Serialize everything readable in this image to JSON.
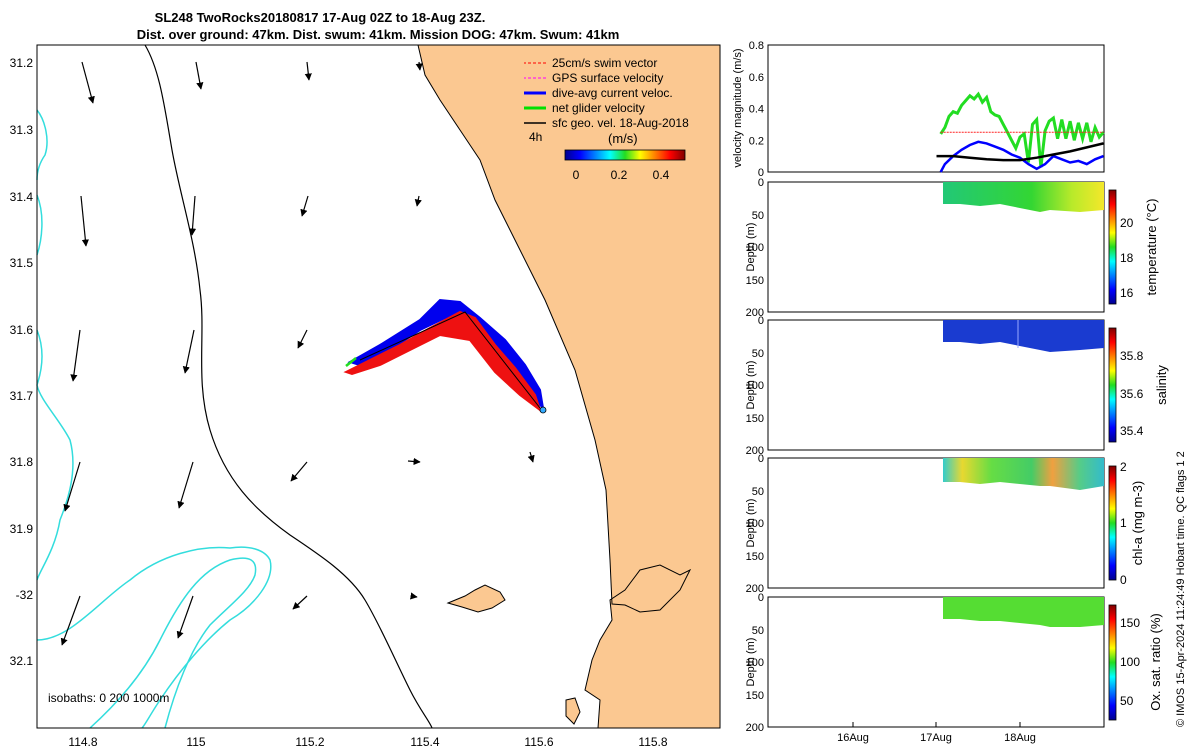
{
  "header": {
    "title_line1": "SL248 TwoRocks20180817 17-Aug 02Z to 18-Aug 23Z.",
    "title_line2": "Dist. over ground: 47km. Dist. swum: 41km. Mission DOG: 47km. Swum: 41km"
  },
  "map": {
    "lon_ticks": [
      "114.8",
      "115",
      "115.2",
      "115.4",
      "115.6",
      "115.8"
    ],
    "lat_ticks": [
      "31.2",
      "31.3",
      "31.4",
      "31.5",
      "31.6",
      "31.7",
      "31.8",
      "31.9",
      "-32",
      "32.1"
    ],
    "isobath_note": "isobaths: 0   200  1000m",
    "time_tag": "4h",
    "legend": [
      {
        "label": "25cm/s swim vector",
        "color": "#ff0000"
      },
      {
        "label": "GPS surface velocity",
        "color": "#ff00ff"
      },
      {
        "label": "dive-avg current veloc.",
        "color": "#0000ff"
      },
      {
        "label": "net glider velocity",
        "color": "#00e000"
      },
      {
        "label": "sfc geo. vel. 18-Aug-2018",
        "color": "#000000"
      }
    ],
    "colorbar": {
      "unit": "(m/s)",
      "ticks": [
        "0",
        "0.2",
        "0.4"
      ]
    },
    "colors": {
      "land": "#fbc891",
      "isobath_shallow": "#000000",
      "isobath_deep": "#33dddd"
    }
  },
  "chart_data": [
    {
      "type": "line",
      "title": "velocity magnitude",
      "ylabel": "velocity magnitude (m/s)",
      "ylim": [
        0,
        0.8
      ],
      "yticks": [
        "0",
        "0.2",
        "0.4",
        "0.6",
        "0.8"
      ],
      "xlabel": "",
      "x_ticks": [
        "16Aug",
        "17Aug",
        "18Aug"
      ],
      "series": [
        {
          "name": "net glider velocity",
          "color": "#22dd22",
          "values": [
            [
              17.05,
              0.24
            ],
            [
              17.1,
              0.28
            ],
            [
              17.15,
              0.35
            ],
            [
              17.2,
              0.38
            ],
            [
              17.25,
              0.37
            ],
            [
              17.3,
              0.42
            ],
            [
              17.35,
              0.45
            ],
            [
              17.4,
              0.48
            ],
            [
              17.45,
              0.46
            ],
            [
              17.5,
              0.49
            ],
            [
              17.55,
              0.44
            ],
            [
              17.6,
              0.47
            ],
            [
              17.65,
              0.38
            ],
            [
              17.7,
              0.36
            ],
            [
              17.75,
              0.35
            ],
            [
              17.8,
              0.3
            ],
            [
              17.85,
              0.25
            ],
            [
              17.9,
              0.2
            ],
            [
              17.95,
              0.15
            ],
            [
              18.0,
              0.22
            ],
            [
              18.05,
              0.24
            ],
            [
              18.1,
              0.06
            ],
            [
              18.15,
              0.3
            ],
            [
              18.2,
              0.33
            ],
            [
              18.25,
              0.03
            ],
            [
              18.3,
              0.26
            ],
            [
              18.35,
              0.32
            ],
            [
              18.4,
              0.34
            ],
            [
              18.45,
              0.21
            ],
            [
              18.5,
              0.33
            ],
            [
              18.55,
              0.21
            ],
            [
              18.6,
              0.32
            ],
            [
              18.65,
              0.2
            ],
            [
              18.7,
              0.31
            ],
            [
              18.75,
              0.21
            ],
            [
              18.8,
              0.31
            ],
            [
              18.85,
              0.19
            ],
            [
              18.9,
              0.28
            ],
            [
              18.95,
              0.22
            ],
            [
              19.0,
              0.25
            ]
          ]
        },
        {
          "name": "dive-avg current veloc.",
          "color": "#0000ff",
          "values": [
            [
              17.05,
              0.0
            ],
            [
              17.1,
              0.05
            ],
            [
              17.2,
              0.1
            ],
            [
              17.3,
              0.14
            ],
            [
              17.4,
              0.17
            ],
            [
              17.5,
              0.19
            ],
            [
              17.6,
              0.18
            ],
            [
              17.7,
              0.16
            ],
            [
              17.8,
              0.14
            ],
            [
              17.9,
              0.11
            ],
            [
              18.0,
              0.09
            ],
            [
              18.1,
              0.05
            ],
            [
              18.2,
              0.02
            ],
            [
              18.3,
              0.05
            ],
            [
              18.4,
              0.1
            ],
            [
              18.5,
              0.08
            ],
            [
              18.6,
              0.06
            ],
            [
              18.7,
              0.07
            ],
            [
              18.8,
              0.05
            ],
            [
              18.9,
              0.08
            ],
            [
              19.0,
              0.1
            ]
          ]
        },
        {
          "name": "25cm/s swim vector",
          "color": "#ff2222",
          "values": [
            [
              17.05,
              0.25
            ],
            [
              19.0,
              0.25
            ]
          ]
        },
        {
          "name": "sfc geo. vel.",
          "color": "#000000",
          "values": [
            [
              17.0,
              0.1
            ],
            [
              17.2,
              0.1
            ],
            [
              17.4,
              0.09
            ],
            [
              17.6,
              0.08
            ],
            [
              17.8,
              0.075
            ],
            [
              18.0,
              0.075
            ],
            [
              18.2,
              0.09
            ],
            [
              18.4,
              0.11
            ],
            [
              18.6,
              0.13
            ],
            [
              18.8,
              0.155
            ],
            [
              19.0,
              0.18
            ]
          ]
        }
      ]
    },
    {
      "type": "heatmap",
      "ylabel": "Depth (m)",
      "yticks": [
        "0",
        "50",
        "100",
        "150",
        "200"
      ],
      "ylim": [
        0,
        200
      ],
      "colorbar_label": "temperature (°C)",
      "colorbar_ticks": [
        "16",
        "18",
        "20"
      ],
      "colorbar_range": [
        15.3,
        21.8
      ],
      "values": [
        [
          17.0,
          0,
          40,
          19.0
        ],
        [
          18.4,
          0,
          40,
          20.3
        ],
        [
          18.7,
          0,
          40,
          20.8
        ]
      ]
    },
    {
      "type": "heatmap",
      "ylabel": "Depth (m)",
      "yticks": [
        "0",
        "50",
        "100",
        "150",
        "200"
      ],
      "ylim": [
        0,
        200
      ],
      "colorbar_label": "salinity",
      "colorbar_ticks": [
        "35.4",
        "35.6",
        "35.8"
      ],
      "colorbar_range": [
        35.3,
        35.95
      ],
      "values": [
        [
          17.0,
          0,
          40,
          35.33
        ]
      ]
    },
    {
      "type": "heatmap",
      "ylabel": "Depth (m)",
      "yticks": [
        "0",
        "50",
        "100",
        "150",
        "200"
      ],
      "ylim": [
        0,
        200
      ],
      "colorbar_label": "chl-a (mg m-3)",
      "colorbar_ticks": [
        "0",
        "1",
        "2"
      ],
      "colorbar_range": [
        0,
        2
      ],
      "values": [
        [
          17.0,
          0,
          40,
          1.1
        ],
        [
          17.2,
          0,
          40,
          1.5
        ],
        [
          18.2,
          0,
          40,
          1.6
        ]
      ]
    },
    {
      "type": "heatmap",
      "ylabel": "Depth (m)",
      "yticks": [
        "0",
        "50",
        "100",
        "150",
        "200"
      ],
      "ylim": [
        0,
        200
      ],
      "colorbar_label": "Ox. sat. ratio (%)",
      "colorbar_ticks": [
        "50",
        "100",
        "150"
      ],
      "colorbar_range": [
        20,
        175
      ],
      "values": [
        [
          17.0,
          0,
          40,
          104
        ]
      ]
    }
  ],
  "credit": "© IMOS 15-Apr-2024 11:24:49 Hobart time. QC flags 1  2"
}
